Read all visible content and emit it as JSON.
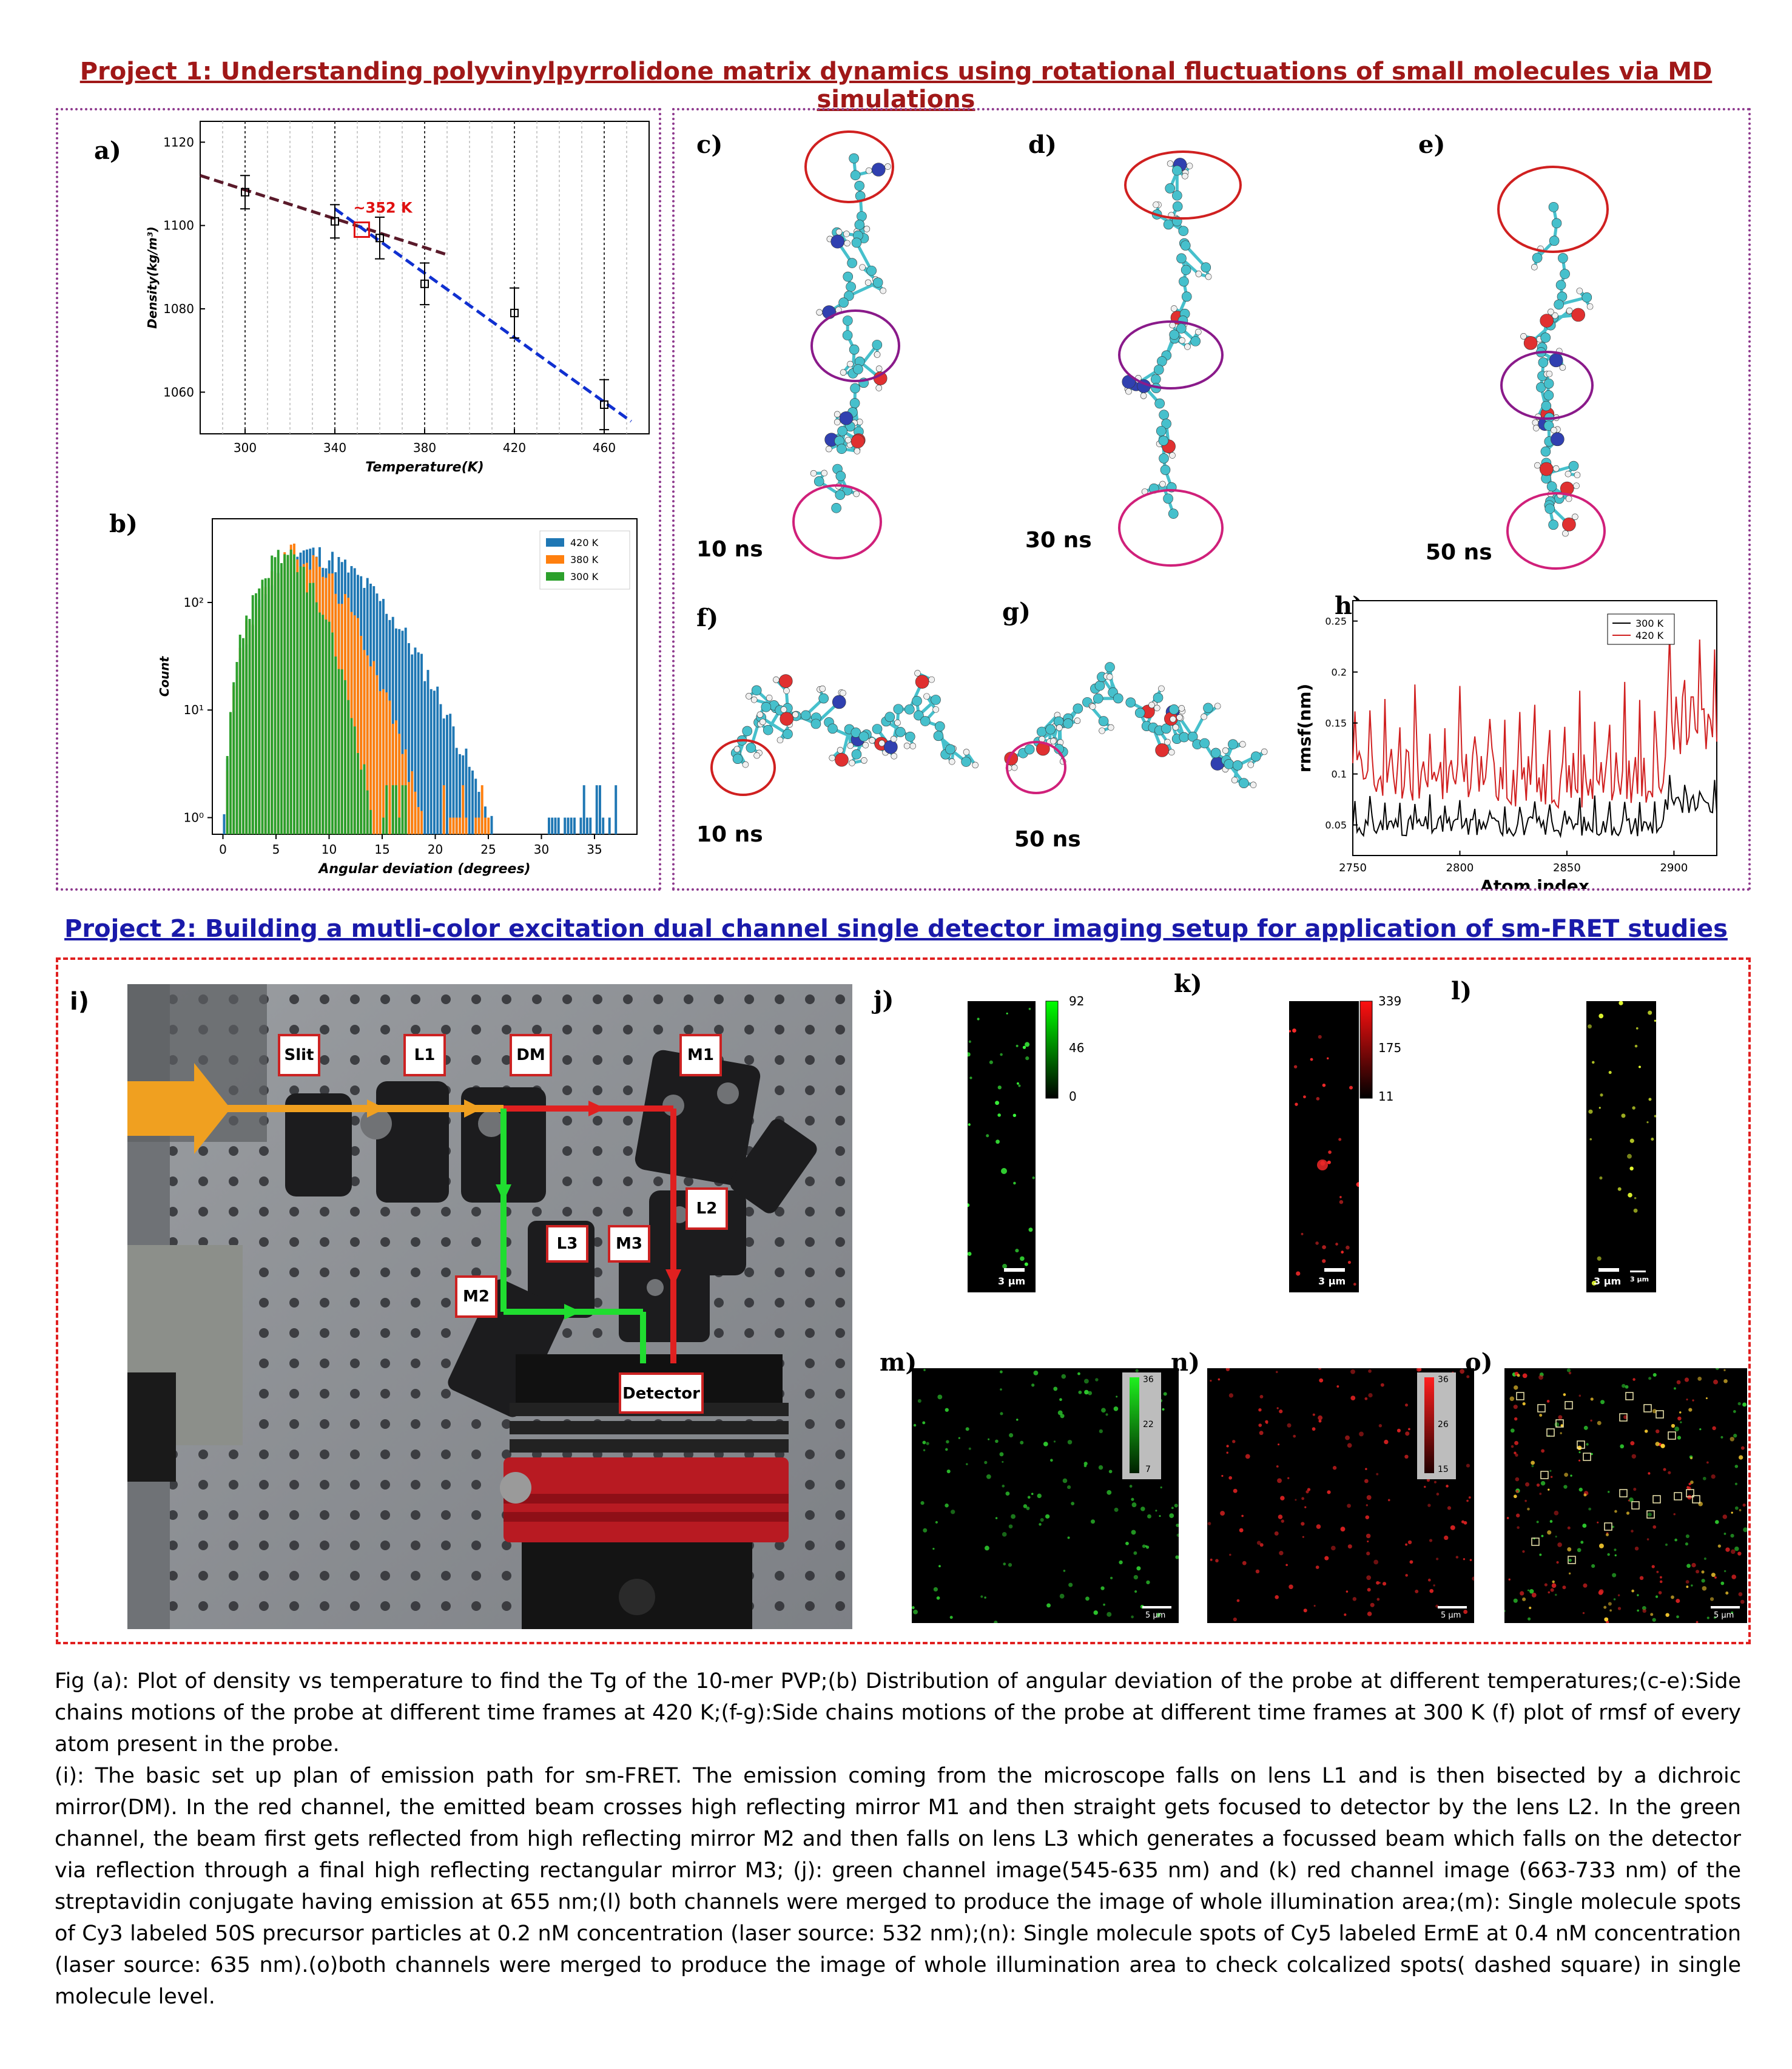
{
  "project1": {
    "title": "Project 1: Understanding polyvinylpyrrolidone matrix dynamics using  rotational fluctuations of small molecules via MD simulations",
    "title_color": "#a01818"
  },
  "project2": {
    "title": "Project 2: Building a mutli-color excitation dual channel single detector imaging setup for application of sm-FRET studies",
    "title_color": "#1a1aaa"
  },
  "panels": {
    "a": "a)",
    "b": "b)",
    "c": "c)",
    "d": "d)",
    "e": "e)",
    "f": "f)",
    "g": "g)",
    "h": "h)",
    "i": "i)",
    "j": "j)",
    "k": "k)",
    "l": "l)",
    "m": "m)",
    "n": "n)",
    "o": "o)"
  },
  "time_labels": {
    "c": "10 ns",
    "d": "30 ns",
    "e": "50 ns",
    "f": "10 ns",
    "g": "50 ns"
  },
  "chart_data": [
    {
      "type": "scatter",
      "panel": "a",
      "xlabel": "Temperature(K)",
      "ylabel": "Density(kg/m³)",
      "xlim": [
        280,
        480
      ],
      "ylim": [
        1050,
        1125
      ],
      "xticks": [
        300,
        340,
        380,
        420,
        460
      ],
      "yticks": [
        1060,
        1080,
        1100,
        1120
      ],
      "points": [
        {
          "x": 300,
          "y": 1108,
          "err": 4
        },
        {
          "x": 340,
          "y": 1101,
          "err": 4
        },
        {
          "x": 360,
          "y": 1097,
          "err": 5
        },
        {
          "x": 380,
          "y": 1086,
          "err": 5
        },
        {
          "x": 420,
          "y": 1079,
          "err": 6
        },
        {
          "x": 460,
          "y": 1057,
          "err": 6
        }
      ],
      "fit_low": {
        "x": [
          280,
          390
        ],
        "y": [
          1112,
          1093
        ]
      },
      "fit_high": {
        "x": [
          340,
          472
        ],
        "y": [
          1104,
          1053
        ]
      },
      "annotation": "~352 K",
      "annotation_point": {
        "x": 352,
        "y": 1099
      },
      "colors": {
        "fit_low": "#5a1a2a",
        "fit_high": "#1030d0",
        "annotation": "#e01010"
      },
      "grid": "vertical dotted"
    },
    {
      "type": "bar",
      "panel": "b",
      "xlabel": "Angular deviation (degrees)",
      "ylabel": "Count",
      "scale_y": "log",
      "xlim": [
        -1,
        39
      ],
      "ylim_log": [
        0.7,
        600
      ],
      "xticks": [
        0,
        5,
        10,
        15,
        20,
        25,
        30,
        35
      ],
      "yticks": [
        "10⁰",
        "10¹",
        "10²"
      ],
      "legend_position": "top-right",
      "series": [
        {
          "name": "420 K",
          "color": "#1f77b4",
          "peak_x": 7,
          "peak_y": 300,
          "right_sigma": 7.5,
          "max_x": 37
        },
        {
          "name": "380 K",
          "color": "#ff7f0e",
          "peak_x": 6,
          "peak_y": 290,
          "right_sigma": 5.3,
          "max_x": 25
        },
        {
          "name": "300 K",
          "color": "#2ca02c",
          "peak_x": 5,
          "peak_y": 280,
          "right_sigma": 3.8,
          "max_x": 18
        }
      ]
    },
    {
      "type": "line",
      "panel": "h",
      "xlabel": "Atom index",
      "ylabel": "rmsf(nm)",
      "xlim": [
        2750,
        2920
      ],
      "ylim": [
        0.02,
        0.27
      ],
      "xticks": [
        2750,
        2800,
        2850,
        2900
      ],
      "yticks": [
        0.05,
        0.1,
        0.15,
        0.2,
        0.25
      ],
      "legend_position": "top-right",
      "series": [
        {
          "name": "300 K",
          "color": "#000000",
          "baseline": 0.045,
          "amplitude": 0.02
        },
        {
          "name": "420 K",
          "color": "#d02020",
          "baseline": 0.085,
          "amplitude": 0.06
        }
      ]
    }
  ],
  "micro": {
    "j": {
      "ticks": [
        "92",
        "46",
        "0"
      ],
      "scale": "3 µm",
      "channel": "green"
    },
    "k": {
      "ticks": [
        "339",
        "175",
        "11"
      ],
      "scale": "3 µm",
      "channel": "red"
    },
    "l": {
      "scale1": "3 µm",
      "scale2": "3 µm",
      "channel": "merged"
    },
    "m": {
      "ticks": [
        "36",
        "22",
        "7"
      ],
      "scale": "5 µm",
      "channel": "green"
    },
    "n": {
      "ticks": [
        "36",
        "26",
        "15"
      ],
      "scale": "5 µm",
      "channel": "red"
    },
    "o": {
      "scale": "5 µm",
      "channel": "merged"
    }
  },
  "setup": {
    "labels": {
      "slit": "Slit",
      "l1": "L1",
      "dm": "DM",
      "m1": "M1",
      "l2": "L2",
      "l3": "L3",
      "m3": "M3",
      "m2": "M2",
      "detector": "Detector"
    },
    "beam_colors": {
      "input": "#f0a020",
      "red": "#e02020",
      "green": "#20dd30"
    }
  },
  "caption": {
    "p1": "Fig (a): Plot of density vs temperature to find the Tg of the 10-mer PVP;(b) Distribution of angular deviation of the probe at different temperatures;(c-e):Side chains motions of the probe at different time frames at 420 K;(f-g):Side chains motions of the probe at different time frames at 300 K (f) plot of rmsf of every atom present in the probe.",
    "p2": "(i): The basic set up plan of emission path for sm-FRET. The emission coming from the microscope falls on lens L1 and is then bisected by a dichroic mirror(DM). In the red channel, the emitted beam crosses high reflecting mirror M1 and then straight gets focused to detector by the lens L2. In the green channel, the beam first gets reflected from high reflecting mirror M2 and then falls on lens L3 which generates a focussed beam which falls on the detector via reflection through a final high reflecting rectangular mirror M3; (j): green channel image(545-635 nm) and (k) red channel image (663-733 nm) of the streptavidin conjugate having emission at 655 nm;(l) both channels were merged to produce the image of whole illumination area;(m): Single molecule spots of Cy3 labeled 50S precursor particles at 0.2 nM concentration (laser source: 532 nm);(n): Single molecule spots of Cy5 labeled ErmE at 0.4 nM concentration (laser source: 635 nm).(o)both channels were merged to produce the image of whole illumination area to check colcalized spots( dashed square) in single molecule level."
  }
}
